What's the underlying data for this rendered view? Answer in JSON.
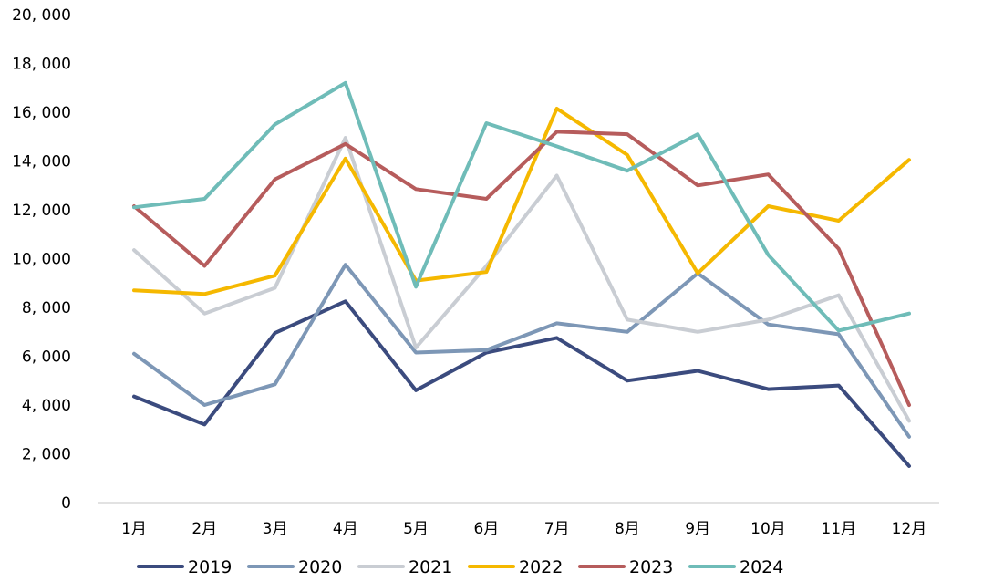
{
  "chart_data": {
    "type": "line",
    "categories": [
      "1月",
      "2月",
      "3月",
      "4月",
      "5月",
      "6月",
      "7月",
      "8月",
      "9月",
      "10月",
      "11月",
      "12月"
    ],
    "ylim": [
      0,
      20000
    ],
    "yticks": [
      0,
      2000,
      4000,
      6000,
      8000,
      10000,
      12000,
      14000,
      16000,
      18000,
      20000
    ],
    "ytick_labels": [
      "0",
      "2, 000",
      "4, 000",
      "6, 000",
      "8, 000",
      "10, 000",
      "12, 000",
      "14, 000",
      "16, 000",
      "18, 000",
      "20, 000"
    ],
    "grid": false,
    "legend_position": "bottom",
    "series": [
      {
        "name": "2019",
        "color": "#3b4b7e",
        "values": [
          4350,
          3200,
          6950,
          8250,
          4600,
          6150,
          6750,
          5000,
          5400,
          4650,
          4800,
          1500
        ]
      },
      {
        "name": "2020",
        "color": "#7d97b6",
        "values": [
          6100,
          4000,
          4850,
          9750,
          6150,
          6250,
          7350,
          7000,
          9400,
          7300,
          6900,
          2700
        ]
      },
      {
        "name": "2021",
        "color": "#c9cdd3",
        "values": [
          10350,
          7750,
          8800,
          14950,
          6350,
          9700,
          13400,
          7500,
          7000,
          7500,
          8500,
          3350
        ]
      },
      {
        "name": "2022",
        "color": "#f5b800",
        "values": [
          8700,
          8550,
          9300,
          14100,
          9100,
          9450,
          16150,
          14250,
          9400,
          12150,
          11550,
          14050
        ]
      },
      {
        "name": "2023",
        "color": "#b65c5c",
        "values": [
          12150,
          9700,
          13250,
          14700,
          12850,
          12450,
          15200,
          15100,
          13000,
          13450,
          10400,
          4000
        ]
      },
      {
        "name": "2024",
        "color": "#6fbcb8",
        "values": [
          12100,
          12450,
          15500,
          17200,
          8850,
          15550,
          14600,
          13600,
          15100,
          10150,
          7050,
          7750
        ]
      }
    ]
  }
}
